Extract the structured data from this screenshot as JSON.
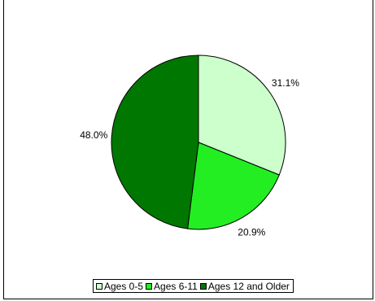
{
  "chart_data": {
    "type": "pie",
    "categories": [
      "Ages 0-5",
      "Ages 6-11",
      "Ages 12 and Older"
    ],
    "values": [
      31.1,
      20.9,
      48.0
    ],
    "value_labels": [
      "31.1%",
      "20.9%",
      "48.0%"
    ],
    "colors": [
      "#ccffcc",
      "#22ee22",
      "#007700"
    ],
    "legend_position": "bottom"
  }
}
